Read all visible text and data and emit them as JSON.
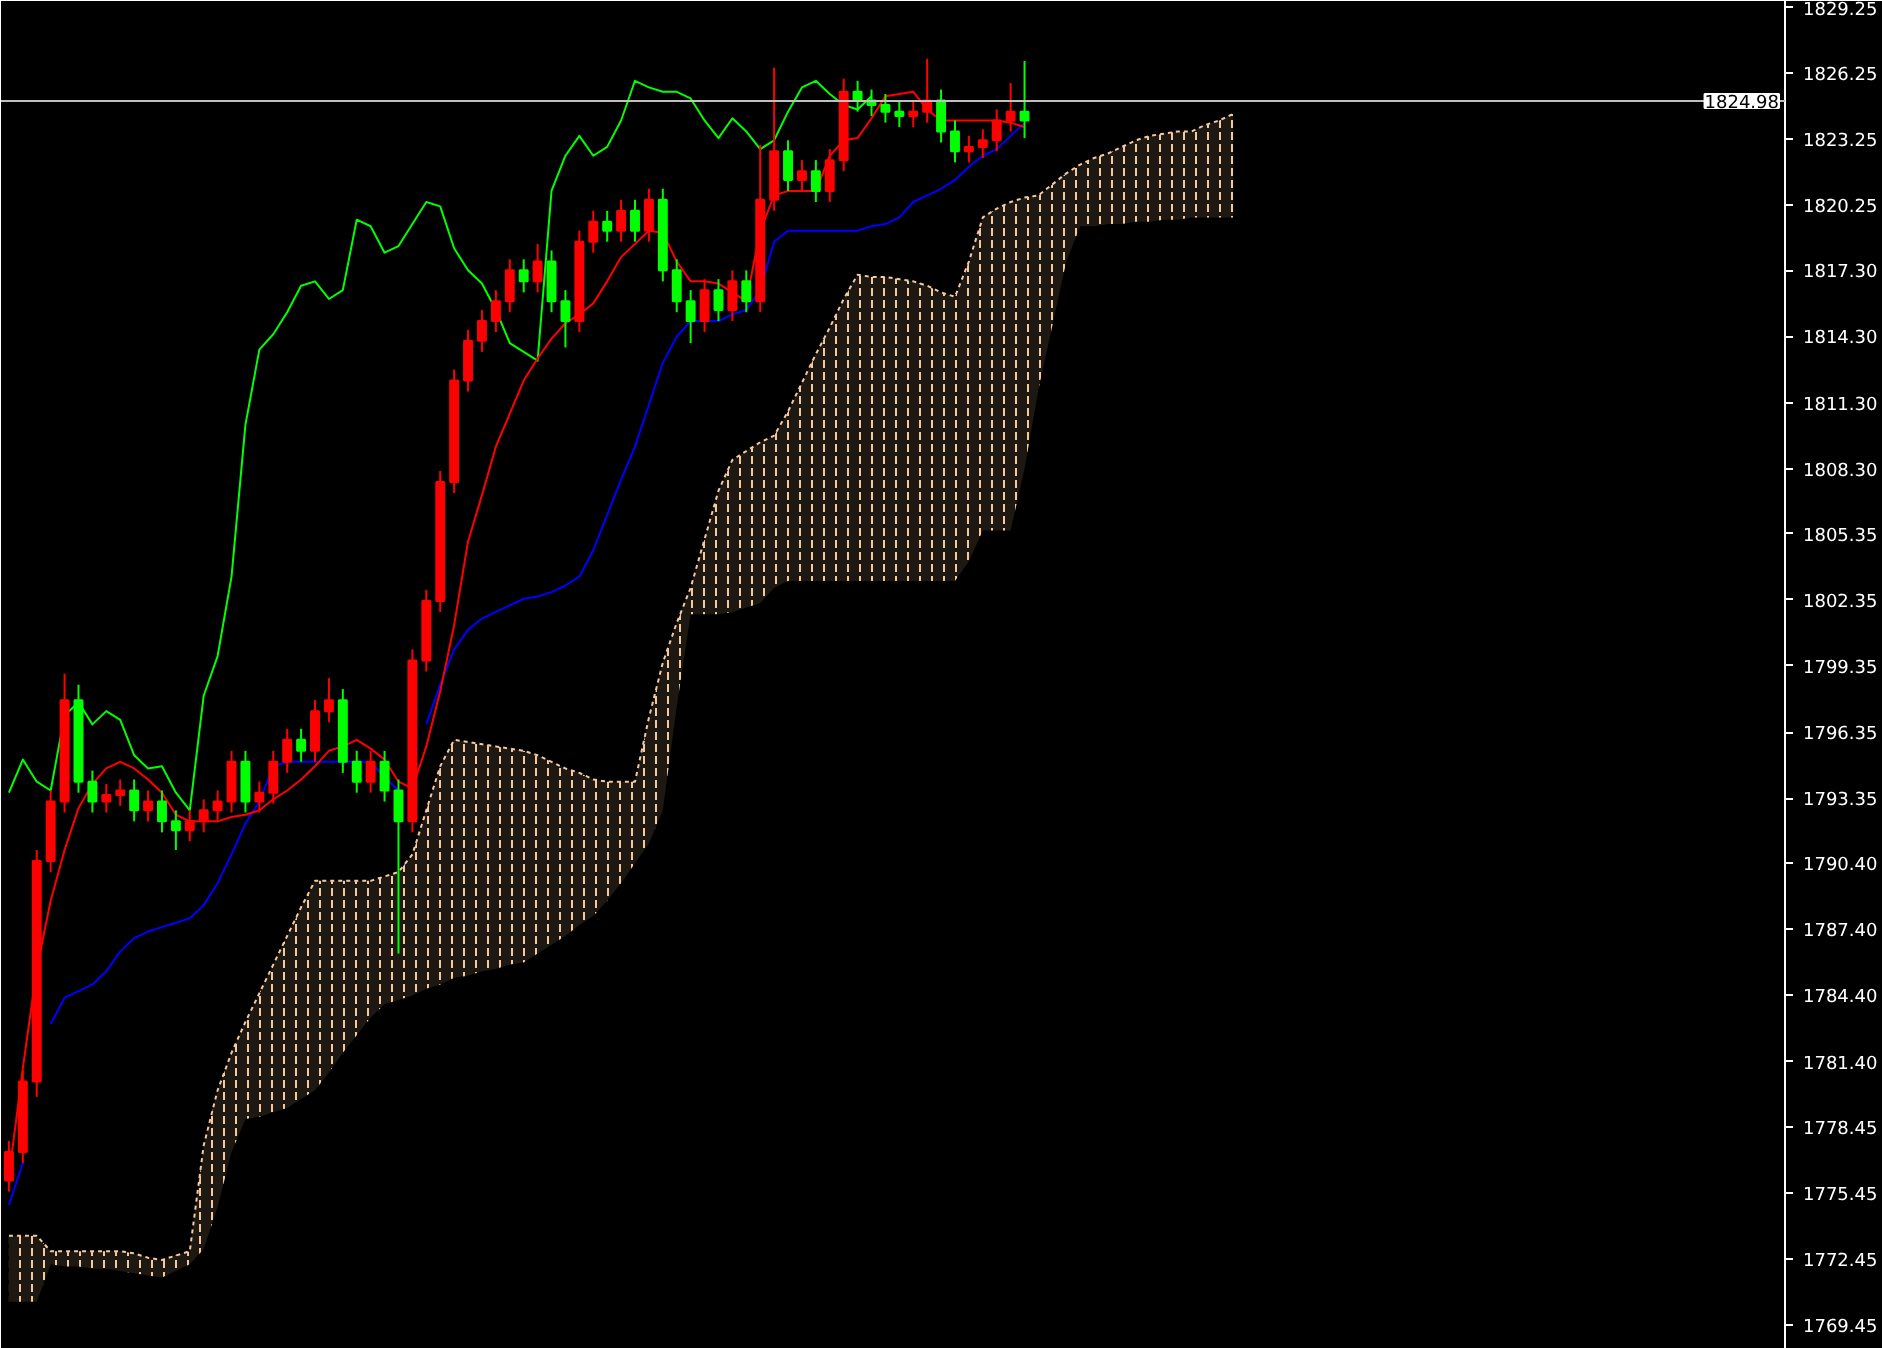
{
  "chart_data": {
    "type": "candlestick",
    "ylim": [
      1768.36,
      1829.52
    ],
    "categories": [
      null,
      null,
      null,
      null,
      null,
      null,
      null,
      null,
      null,
      null,
      null,
      null,
      null,
      null,
      null,
      null,
      null,
      null,
      null,
      null,
      null,
      null,
      null,
      null,
      null,
      null,
      null,
      null,
      null,
      null,
      null,
      null,
      null,
      null,
      null,
      null,
      null,
      null,
      null,
      null,
      null,
      null,
      null,
      null,
      null,
      null,
      null,
      null,
      null,
      null,
      null,
      null,
      null,
      null,
      null,
      null,
      null,
      null,
      null,
      null,
      null,
      null,
      null,
      null,
      null,
      null,
      null,
      null,
      null,
      null,
      null,
      null,
      null,
      null,
      null,
      null,
      null,
      null,
      null,
      null,
      null,
      null,
      null,
      null,
      null,
      null,
      null,
      null,
      null
    ],
    "yticks": [
      1829.25,
      1826.25,
      1823.25,
      1820.25,
      {
        "value": 1817.3,
        "label": "1817.30"
      },
      {
        "value": 1814.3,
        "label": "1814.30"
      },
      {
        "value": 1811.3,
        "label": "1811.30"
      },
      {
        "value": 1808.3,
        "label": "1808.30"
      },
      1805.35,
      1802.35,
      1799.35,
      1796.35,
      1793.35,
      {
        "value": 1790.4,
        "label": "1790.40"
      },
      {
        "value": 1787.4,
        "label": "1787.40"
      },
      {
        "value": 1784.4,
        "label": "1784.40"
      },
      {
        "value": 1781.4,
        "label": "1781.40"
      },
      1778.45,
      1775.45,
      1772.45,
      1769.45
    ],
    "tick_labels": "y",
    "ref_lines": [
      {
        "axis": "y",
        "value": 1824.98,
        "label": "1824.98",
        "color": "#c0c0c0"
      }
    ],
    "series": [
      {
        "type": "line",
        "line_style": "dashed",
        "color": "#f5c9a0",
        "upper": [
          1773.5,
          1773.5,
          1773.5,
          1772.8,
          1772.8,
          1772.8,
          1772.8,
          1772.8,
          1772.8,
          1772.7,
          1772.5,
          1772.4,
          1772.6,
          1772.8,
          1777.6,
          1780.1,
          1781.8,
          1783.2,
          1784.5,
          1785.8,
          1787.1,
          1788.4,
          1789.6,
          1789.6,
          1789.6,
          1789.6,
          1789.6,
          1789.8,
          1790.0,
          1790.8,
          1792.8,
          1794.8,
          1796.0,
          1795.9,
          1795.8,
          1795.7,
          1795.6,
          1795.5,
          1795.3,
          1795.0,
          1794.7,
          1794.5,
          1794.2,
          1794.1,
          1794.1,
          1794.1,
          1797.0,
          1799.5,
          1801.3,
          1802.9,
          1805.1,
          1807.3,
          1808.7,
          1809.1,
          1809.5,
          1809.8,
          1810.9,
          1812.2,
          1813.5,
          1814.7,
          1816.0,
          1817.1,
          1817.0,
          1817.0,
          1816.9,
          1816.8,
          1816.6,
          1816.3,
          1816.1,
          1817.7,
          1819.7,
          1820.1,
          1820.4,
          1820.6,
          1820.7,
          1821.2,
          1821.7,
          1822.1,
          1822.4,
          1822.6,
          1822.9,
          1823.2,
          1823.4,
          1823.5,
          1823.6,
          1823.6,
          1823.9,
          1824.1,
          1824.4
        ],
        "values": [
          1773.5,
          1773.5,
          1773.5,
          1772.8,
          1772.8,
          1772.8,
          1772.8,
          1772.8,
          1772.8,
          1772.7,
          1772.5,
          1772.4,
          1772.6,
          1772.8,
          1777.6,
          1780.1,
          1781.8,
          1783.2,
          1784.5,
          1785.8,
          1787.1,
          1788.4,
          1789.6,
          1789.6,
          1789.6,
          1789.6,
          1789.6,
          1789.8,
          1790.0,
          1790.8,
          1792.8,
          1794.8,
          1796.0,
          1795.9,
          1795.8,
          1795.7,
          1795.6,
          1795.5,
          1795.3,
          1795.0,
          1794.7,
          1794.5,
          1794.2,
          1794.1,
          1794.1,
          1794.1,
          1797.0,
          1799.5,
          1801.3,
          1802.9,
          1805.1,
          1807.3,
          1808.7,
          1809.1,
          1809.5,
          1809.8,
          1810.9,
          1812.2,
          1813.5,
          1814.7,
          1816.0,
          1817.1,
          1817.0,
          1817.0,
          1816.9,
          1816.8,
          1816.6,
          1816.3,
          1816.1,
          1817.7,
          1819.7,
          1820.1,
          1820.4,
          1820.6,
          1820.7,
          1821.2,
          1821.7,
          1822.1,
          1822.4,
          1822.6,
          1822.9,
          1823.2,
          1823.4,
          1823.5,
          1823.6,
          1823.6,
          1823.9,
          1824.1,
          1824.4
        ],
        "lower": [
          1770.5,
          1770.5,
          1770.5,
          1772.2,
          1772.1,
          1772.1,
          1772.0,
          1772.0,
          1771.9,
          1771.8,
          1771.7,
          1771.6,
          1771.9,
          1772.2,
          1772.9,
          1774.8,
          1777.3,
          1778.8,
          1778.9,
          1779.1,
          1779.3,
          1779.7,
          1780.1,
          1780.9,
          1781.8,
          1782.6,
          1783.4,
          1784.0,
          1784.2,
          1784.4,
          1784.7,
          1784.9,
          1785.2,
          1785.3,
          1785.5,
          1785.6,
          1785.8,
          1785.9,
          1786.3,
          1786.7,
          1787.1,
          1787.6,
          1788.0,
          1788.7,
          1789.5,
          1790.4,
          1791.3,
          1792.8,
          1797.5,
          1801.7,
          1801.7,
          1801.7,
          1801.8,
          1802.0,
          1802.2,
          1802.9,
          1803.2,
          1803.2,
          1803.2,
          1803.2,
          1803.2,
          1803.2,
          1803.2,
          1803.2,
          1803.2,
          1803.2,
          1803.2,
          1803.2,
          1803.2,
          1804.1,
          1805.5,
          1805.5,
          1805.5,
          1808.3,
          1811.9,
          1814.8,
          1817.7,
          1819.3,
          1819.3,
          1819.4,
          1819.4,
          1819.5,
          1819.5,
          1819.6,
          1819.6,
          1819.7,
          1819.7,
          1819.7,
          1819.7
        ]
      },
      {
        "type": "line",
        "color": "#00ff00",
        "values": [
          1793.6,
          1795.1,
          1794.1,
          1793.7,
          1797.1,
          1797.7,
          1796.7,
          1797.3,
          1796.9,
          1795.3,
          1794.7,
          1794.8,
          1793.6,
          1792.8,
          1798.0,
          1799.8,
          1803.4,
          1810.3,
          1813.7,
          1814.4,
          1815.4,
          1816.6,
          1816.8,
          1816.0,
          1816.4,
          1819.6,
          1819.3,
          1818.1,
          1818.4,
          1819.4,
          1820.4,
          1820.2,
          1818.3,
          1817.3,
          1816.7,
          1815.5,
          1814.0,
          1813.6,
          1813.2,
          1820.9,
          1822.5,
          1823.4,
          1822.5,
          1822.9,
          1824.1,
          1825.9,
          1825.6,
          1825.4,
          1825.4,
          1825.1,
          1824.1,
          1823.3,
          1824.2,
          1823.6,
          1822.8,
          1823.2,
          1824.5,
          1825.6,
          1825.9,
          1825.3,
          1824.8,
          1824.6,
          1825.2,
          null,
          null,
          null,
          null,
          null,
          null,
          null,
          null,
          null,
          null,
          null,
          null,
          null,
          null,
          null,
          null,
          null,
          null,
          null,
          null,
          null,
          null,
          null,
          null,
          null,
          null
        ]
      },
      {
        "type": "line",
        "color": "#0000ff",
        "values": [
          1774.9,
          1776.8,
          null,
          1783.1,
          1784.3,
          1784.6,
          1784.9,
          1785.5,
          1786.4,
          1787.0,
          1787.3,
          1787.5,
          1787.7,
          1787.9,
          1788.5,
          1789.5,
          1790.8,
          1792.2,
          1793.2,
          1794.8,
          1795.0,
          1795.0,
          1795.0,
          1795.0,
          1795.0,
          1795.0,
          1795.0,
          1794.3,
          1793.7,
          null,
          1796.7,
          1798.5,
          1800.1,
          1801.0,
          1801.5,
          1801.8,
          1802.1,
          1802.4,
          1802.5,
          1802.7,
          1803.0,
          1803.4,
          1804.6,
          1806.2,
          1807.8,
          1809.3,
          1811.2,
          1813.1,
          1814.3,
          1815.0,
          1815.0,
          1815.0,
          1815.3,
          1815.5,
          1816.4,
          1818.6,
          1819.1,
          1819.1,
          1819.1,
          1819.1,
          1819.1,
          1819.1,
          1819.3,
          1819.4,
          1819.7,
          1820.4,
          1820.7,
          1821.0,
          1821.4,
          1822.0,
          1822.5,
          1822.8,
          1823.4,
          1824.0,
          null,
          null,
          null,
          null,
          null,
          null,
          null,
          null,
          null,
          null,
          null,
          null,
          null,
          null,
          null
        ]
      },
      {
        "type": "line",
        "color": "#ff0000",
        "values": [
          1776.2,
          1781.1,
          1785.6,
          1788.7,
          1791.0,
          1792.9,
          1794.0,
          1794.7,
          1795.0,
          1794.7,
          1794.2,
          1793.6,
          1792.6,
          1792.3,
          1792.3,
          1792.3,
          1792.5,
          1792.6,
          1792.8,
          1793.3,
          1793.7,
          1794.2,
          1794.8,
          1795.5,
          1795.7,
          1796.0,
          1795.6,
          1795.1,
          1794.1,
          1793.8,
          1795.7,
          1798.2,
          1801.2,
          1805.0,
          1807.1,
          1809.3,
          1810.8,
          1812.3,
          1813.3,
          1814.2,
          1814.9,
          1815.3,
          1815.8,
          1816.8,
          1817.9,
          1818.5,
          1819.1,
          1819.0,
          1817.7,
          1816.8,
          1816.8,
          1816.7,
          1816.3,
          1815.9,
          1819.1,
          1820.7,
          1820.9,
          1820.9,
          1820.9,
          1822.5,
          1823.2,
          1823.3,
          1824.2,
          1825.2,
          1825.3,
          1825.4,
          1824.6,
          1824.1,
          1824.1,
          1824.1,
          1824.1,
          1824.1,
          1824.0,
          1823.8,
          null,
          null,
          null,
          null,
          null,
          null,
          null,
          null,
          null,
          null,
          null,
          null,
          null,
          null,
          null
        ]
      },
      {
        "ohlc": [
          [
            1776.0,
            1777.8,
            1775.5,
            1777.3
          ],
          [
            1777.3,
            1781.0,
            1776.8,
            1780.5
          ],
          [
            1780.5,
            1791.0,
            1779.8,
            1790.5
          ],
          [
            1790.5,
            1793.7,
            1790.0,
            1793.2
          ],
          [
            1793.2,
            1799.0,
            1792.7,
            1797.8
          ],
          [
            1797.8,
            1798.5,
            1793.6,
            1794.1
          ],
          [
            1794.1,
            1794.6,
            1792.7,
            1793.2
          ],
          [
            1793.2,
            1794.0,
            1792.7,
            1793.5
          ],
          [
            1793.5,
            1794.2,
            1793.0,
            1793.7
          ],
          [
            1793.7,
            1794.2,
            1792.3,
            1792.8
          ],
          [
            1792.8,
            1793.7,
            1792.3,
            1793.2
          ],
          [
            1793.2,
            1793.7,
            1791.8,
            1792.3
          ],
          [
            1792.3,
            1792.8,
            1791.0,
            1791.9
          ],
          [
            1791.9,
            1792.8,
            1791.4,
            1792.3
          ],
          [
            1792.3,
            1793.3,
            1791.8,
            1792.8
          ],
          [
            1792.8,
            1793.7,
            1792.3,
            1793.2
          ],
          [
            1793.2,
            1795.5,
            1792.7,
            1795.0
          ],
          [
            1795.0,
            1795.5,
            1792.7,
            1793.2
          ],
          [
            1793.2,
            1794.1,
            1792.7,
            1793.6
          ],
          [
            1793.6,
            1795.5,
            1793.1,
            1795.0
          ],
          [
            1795.0,
            1796.5,
            1794.5,
            1796.0
          ],
          [
            1796.0,
            1796.5,
            1795.0,
            1795.5
          ],
          [
            1795.5,
            1797.8,
            1795.0,
            1797.3
          ],
          [
            1797.3,
            1798.8,
            1796.8,
            1797.8
          ],
          [
            1797.8,
            1798.3,
            1794.5,
            1795.0
          ],
          [
            1795.0,
            1795.5,
            1793.6,
            1794.1
          ],
          [
            1794.1,
            1795.5,
            1793.6,
            1795.0
          ],
          [
            1795.0,
            1795.5,
            1793.2,
            1793.7
          ],
          [
            1793.7,
            1794.2,
            1786.3,
            1792.3
          ],
          [
            1792.3,
            1800.1,
            1791.8,
            1799.6
          ],
          [
            1799.6,
            1802.8,
            1799.1,
            1802.3
          ],
          [
            1802.3,
            1808.2,
            1801.8,
            1807.7
          ],
          [
            1807.7,
            1812.8,
            1807.2,
            1812.3
          ],
          [
            1812.3,
            1814.6,
            1811.8,
            1814.1
          ],
          [
            1814.1,
            1815.5,
            1813.6,
            1815.0
          ],
          [
            1815.0,
            1816.4,
            1814.5,
            1815.9
          ],
          [
            1815.9,
            1817.8,
            1815.4,
            1817.3
          ],
          [
            1817.3,
            1817.8,
            1816.3,
            1816.8
          ],
          [
            1816.8,
            1818.5,
            1816.3,
            1817.7
          ],
          [
            1817.7,
            1818.2,
            1815.4,
            1815.9
          ],
          [
            1815.9,
            1816.4,
            1813.8,
            1815.0
          ],
          [
            1815.0,
            1819.1,
            1814.5,
            1818.6
          ],
          [
            1818.6,
            1820.0,
            1818.1,
            1819.5
          ],
          [
            1819.5,
            1820.0,
            1818.6,
            1819.1
          ],
          [
            1819.1,
            1820.5,
            1818.6,
            1820.0
          ],
          [
            1820.0,
            1820.5,
            1818.6,
            1819.1
          ],
          [
            1819.1,
            1821.0,
            1818.6,
            1820.5
          ],
          [
            1820.5,
            1821.0,
            1816.8,
            1817.3
          ],
          [
            1817.3,
            1817.8,
            1815.4,
            1815.9
          ],
          [
            1815.9,
            1816.4,
            1814.0,
            1815.0
          ],
          [
            1815.0,
            1816.9,
            1814.5,
            1816.4
          ],
          [
            1816.4,
            1816.9,
            1815.0,
            1815.5
          ],
          [
            1815.5,
            1817.3,
            1815.0,
            1816.8
          ],
          [
            1816.8,
            1817.3,
            1815.4,
            1815.9
          ],
          [
            1815.9,
            1823.0,
            1815.4,
            1820.5
          ],
          [
            1820.5,
            1826.5,
            1820.0,
            1822.7
          ],
          [
            1822.7,
            1823.2,
            1820.9,
            1821.4
          ],
          [
            1821.4,
            1822.3,
            1820.9,
            1821.8
          ],
          [
            1821.8,
            1822.3,
            1820.4,
            1820.9
          ],
          [
            1820.9,
            1822.8,
            1820.4,
            1822.3
          ],
          [
            1822.3,
            1826.0,
            1821.8,
            1825.4
          ],
          [
            1825.4,
            1825.9,
            1824.5,
            1825.0
          ],
          [
            1825.0,
            1825.5,
            1824.3,
            1824.8
          ],
          [
            1824.8,
            1825.3,
            1824.0,
            1824.5
          ],
          [
            1824.5,
            1825.0,
            1823.8,
            1824.3
          ],
          [
            1824.3,
            1825.0,
            1823.8,
            1824.5
          ],
          [
            1824.5,
            1826.9,
            1824.0,
            1825.0
          ],
          [
            1825.0,
            1825.5,
            1823.1,
            1823.6
          ],
          [
            1823.6,
            1824.1,
            1822.2,
            1822.7
          ],
          [
            1822.7,
            1823.4,
            1822.2,
            1822.9
          ],
          [
            1822.9,
            1823.7,
            1822.4,
            1823.2
          ],
          [
            1823.2,
            1824.6,
            1822.7,
            1824.1
          ],
          [
            1824.1,
            1825.8,
            1823.6,
            1824.5
          ],
          [
            1824.5,
            1826.8,
            1823.3,
            1824.1
          ],
          null,
          null,
          null,
          null,
          null,
          null,
          null,
          null,
          null,
          null,
          null,
          null,
          null,
          null,
          null
        ],
        "colors": [
          "#ff0000",
          "#ff0000",
          "#ff0000",
          "#ff0000",
          "#ff0000",
          "#00ff00",
          "#00ff00",
          "#ff0000",
          "#ff0000",
          "#00ff00",
          "#ff0000",
          "#00ff00",
          "#00ff00",
          "#ff0000",
          "#ff0000",
          "#ff0000",
          "#ff0000",
          "#00ff00",
          "#ff0000",
          "#ff0000",
          "#ff0000",
          "#00ff00",
          "#ff0000",
          "#ff0000",
          "#00ff00",
          "#00ff00",
          "#ff0000",
          "#00ff00",
          "#00ff00",
          "#ff0000",
          "#ff0000",
          "#ff0000",
          "#ff0000",
          "#ff0000",
          "#ff0000",
          "#ff0000",
          "#ff0000",
          "#00ff00",
          "#ff0000",
          "#00ff00",
          "#00ff00",
          "#ff0000",
          "#ff0000",
          "#00ff00",
          "#ff0000",
          "#00ff00",
          "#ff0000",
          "#00ff00",
          "#00ff00",
          "#00ff00",
          "#ff0000",
          "#00ff00",
          "#ff0000",
          "#00ff00",
          "#ff0000",
          "#ff0000",
          "#00ff00",
          "#ff0000",
          "#00ff00",
          "#ff0000",
          "#ff0000",
          "#00ff00",
          "#00ff00",
          "#00ff00",
          "#00ff00",
          "#ff0000",
          "#ff0000",
          "#00ff00",
          "#00ff00",
          "#ff0000",
          "#ff0000",
          "#ff0000",
          "#ff0000",
          "#00ff00",
          null,
          null,
          null,
          null,
          null,
          null,
          null,
          null,
          null,
          null,
          null,
          null,
          null,
          null,
          null
        ]
      }
    ]
  }
}
